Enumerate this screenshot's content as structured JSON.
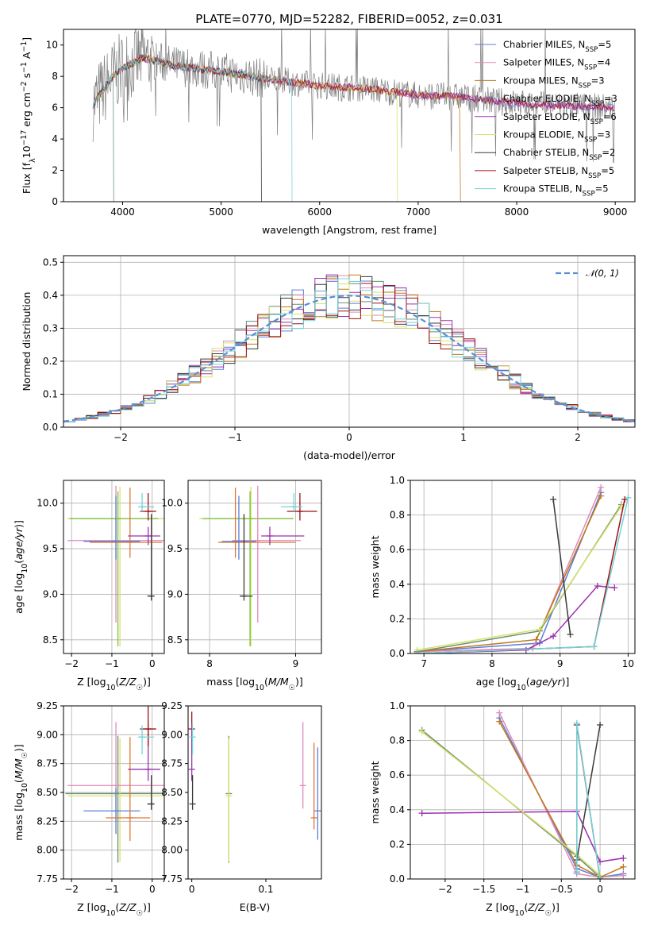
{
  "colors": {
    "Chabrier MILES": "#5b7fd6",
    "Salpeter MILES": "#e08ab8",
    "Kroupa MILES": "#c07818",
    "Chabrier ELODIE": "#6a8f72",
    "Salpeter ELODIE": "#9b30b0",
    "Kroupa ELODIE": "#d8e26a",
    "Chabrier STELIB": "#3a3a3a",
    "Salpeter STELIB": "#9e1010",
    "Kroupa STELIB": "#70d4dc",
    "extra_orange": "#e07830",
    "extra_green": "#7cc040",
    "gaussian": "#5b8ed6",
    "grid": "#b0b0b0"
  },
  "chart_data": [
    {
      "id": "spectrum",
      "type": "line",
      "title": "PLATE=0770, MJD=52282, FIBERID=0052, z=0.031",
      "xlabel": "wavelength [Angstrom, rest frame]",
      "ylabel": "Flux [f_λ 10^-17 erg cm^-2 s^-1 A^-1]",
      "xlim": [
        3400,
        9200
      ],
      "ylim": [
        0,
        11
      ],
      "xticks": [
        4000,
        5000,
        6000,
        7000,
        8000,
        9000
      ],
      "yticks": [
        0,
        2,
        4,
        6,
        8,
        10
      ],
      "grid": false,
      "legend_position": "top-right",
      "legend": [
        {
          "name": "Chabrier MILES",
          "nssp": "5"
        },
        {
          "name": "Salpeter MILES",
          "nssp": "4"
        },
        {
          "name": "Kroupa MILES",
          "nssp": "3"
        },
        {
          "name": "Chabrier ELODIE",
          "nssp": "3"
        },
        {
          "name": "Salpeter ELODIE",
          "nssp": "6"
        },
        {
          "name": "Kroupa ELODIE",
          "nssp": "3"
        },
        {
          "name": "Chabrier STELIB",
          "nssp": "2"
        },
        {
          "name": "Salpeter STELIB",
          "nssp": "5"
        },
        {
          "name": "Kroupa STELIB",
          "nssp": "5"
        }
      ],
      "continuum": {
        "x": [
          3700,
          3900,
          4000,
          4200,
          4500,
          5000,
          5500,
          6000,
          6500,
          7000,
          7400,
          7800,
          8200,
          8600,
          9000
        ],
        "y": [
          6.2,
          8.0,
          8.5,
          9.2,
          8.7,
          8.3,
          7.8,
          7.4,
          7.2,
          6.8,
          6.7,
          6.4,
          6.2,
          6.1,
          6.0
        ]
      },
      "dropouts": [
        {
          "name": "Kroupa MILES",
          "x": 7430
        },
        {
          "name": "Kroupa ELODIE",
          "x": 6790
        },
        {
          "name": "Chabrier ELODIE",
          "x": 3910
        },
        {
          "name": "Kroupa STELIB",
          "x": 5720
        },
        {
          "name": "Chabrier STELIB",
          "x": 5410
        }
      ]
    },
    {
      "id": "residuals",
      "type": "histogram",
      "xlabel": "(data-model)/error",
      "ylabel": "Normed distribution",
      "xlim": [
        -2.5,
        2.5
      ],
      "ylim": [
        0,
        0.52
      ],
      "xticks": [
        -2,
        -1,
        0,
        1,
        2
      ],
      "yticks": [
        0.0,
        0.1,
        0.2,
        0.3,
        0.4,
        0.5
      ],
      "grid": true,
      "legend_position": "top-right",
      "legend": [
        {
          "name": "𝒩(0, 1)"
        }
      ],
      "bin_width": 0.1,
      "series_names": [
        "Chabrier MILES",
        "Salpeter MILES",
        "Kroupa MILES",
        "Chabrier ELODIE",
        "Salpeter ELODIE",
        "Kroupa ELODIE",
        "Chabrier STELIB",
        "Salpeter STELIB",
        "Kroupa STELIB"
      ]
    },
    {
      "id": "age_vs_Z",
      "type": "errorbar",
      "xlabel": "Z [log10(Z/Z☉)]",
      "ylabel": "age [log10(age/yr)]",
      "xlim": [
        -2.2,
        0.3
      ],
      "ylim": [
        8.35,
        10.25
      ],
      "xticks": [
        -2,
        -1,
        0
      ],
      "yticks": [
        8.5,
        9.0,
        9.5,
        10.0
      ],
      "grid": true,
      "points": [
        {
          "series": "Kroupa ELODIE",
          "x": -0.8,
          "y": 9.83,
          "xerr": [
            1.3,
            1.2
          ],
          "yerr": [
            1.4,
            0.35
          ]
        },
        {
          "series": "extra_green",
          "x": -0.85,
          "y": 9.83,
          "xerr": [
            1.2,
            1.0
          ],
          "yerr": [
            1.4,
            0.3
          ]
        },
        {
          "series": "Salpeter MILES",
          "x": -0.9,
          "y": 9.59,
          "xerr": [
            1.2,
            1.2
          ],
          "yerr": [
            0.9,
            0.6
          ]
        },
        {
          "series": "extra_orange",
          "x": -0.55,
          "y": 9.57,
          "xerr": [
            1.0,
            0.8
          ],
          "yerr": [
            0.17,
            0.6
          ]
        },
        {
          "series": "Chabrier MILES",
          "x": -0.9,
          "y": 9.58,
          "xerr": [
            0.8,
            0.6
          ],
          "yerr": [
            0.2,
            0.5
          ]
        },
        {
          "series": "Salpeter ELODIE",
          "x": -0.1,
          "y": 9.64,
          "xerr": [
            0.5,
            0.3
          ],
          "yerr": [
            0.1,
            0.1
          ]
        },
        {
          "series": "Salpeter STELIB",
          "x": -0.1,
          "y": 9.91,
          "xerr": [
            0.2,
            0.2
          ],
          "yerr": [
            0.1,
            0.2
          ]
        },
        {
          "series": "Kroupa STELIB",
          "x": -0.25,
          "y": 9.96,
          "xerr": [
            0.1,
            0.3
          ],
          "yerr": [
            0.05,
            0.15
          ]
        },
        {
          "series": "Chabrier STELIB",
          "x": -0.02,
          "y": 8.98,
          "xerr": [
            0.1,
            0.05
          ],
          "yerr": [
            0.05,
            0.9
          ]
        }
      ]
    },
    {
      "id": "age_vs_mass",
      "type": "errorbar",
      "xlabel": "mass [log10(M/M☉)]",
      "ylabel": "",
      "xlim": [
        7.75,
        9.3
      ],
      "ylim": [
        8.35,
        10.25
      ],
      "xticks": [
        8,
        9
      ],
      "yticks": [
        8.5,
        9.0,
        9.5,
        10.0
      ],
      "grid": true,
      "points": [
        {
          "series": "Kroupa ELODIE",
          "x": 8.48,
          "y": 9.83,
          "xerr": [
            0.6,
            0.5
          ],
          "yerr": [
            1.4,
            0.35
          ]
        },
        {
          "series": "extra_green",
          "x": 8.47,
          "y": 9.83,
          "xerr": [
            0.55,
            0.5
          ],
          "yerr": [
            1.4,
            0.3
          ]
        },
        {
          "series": "Salpeter MILES",
          "x": 8.56,
          "y": 9.59,
          "xerr": [
            0.3,
            0.5
          ],
          "yerr": [
            0.9,
            0.6
          ]
        },
        {
          "series": "extra_orange",
          "x": 8.3,
          "y": 9.57,
          "xerr": [
            0.2,
            0.7
          ],
          "yerr": [
            0.17,
            0.6
          ]
        },
        {
          "series": "Chabrier MILES",
          "x": 8.34,
          "y": 9.58,
          "xerr": [
            0.2,
            0.2
          ],
          "yerr": [
            0.2,
            0.5
          ]
        },
        {
          "series": "Salpeter ELODIE",
          "x": 8.7,
          "y": 9.64,
          "xerr": [
            0.1,
            0.4
          ],
          "yerr": [
            0.1,
            0.1
          ]
        },
        {
          "series": "Salpeter STELIB",
          "x": 9.05,
          "y": 9.91,
          "xerr": [
            0.15,
            0.2
          ],
          "yerr": [
            0.1,
            0.2
          ]
        },
        {
          "series": "Kroupa STELIB",
          "x": 8.98,
          "y": 9.96,
          "xerr": [
            0.15,
            0.1
          ],
          "yerr": [
            0.05,
            0.15
          ]
        },
        {
          "series": "Chabrier STELIB",
          "x": 8.4,
          "y": 8.98,
          "xerr": [
            0.05,
            0.1
          ],
          "yerr": [
            0.05,
            0.9
          ]
        }
      ]
    },
    {
      "id": "weight_vs_age",
      "type": "line",
      "xlabel": "age  [log10(age/yr)]",
      "ylabel": "mass weight",
      "xlim": [
        6.8,
        10.1
      ],
      "ylim": [
        0,
        1.0
      ],
      "xticks": [
        7,
        8,
        9,
        10
      ],
      "yticks": [
        0.0,
        0.2,
        0.4,
        0.6,
        0.8,
        1.0
      ],
      "grid": true,
      "series": [
        {
          "name": "Chabrier MILES",
          "x": [
            6.9,
            8.7,
            9.6
          ],
          "y": [
            0.01,
            0.06,
            0.93
          ]
        },
        {
          "name": "Salpeter MILES",
          "x": [
            6.9,
            8.6,
            9.6
          ],
          "y": [
            0.01,
            0.03,
            0.96
          ]
        },
        {
          "name": "Kroupa MILES",
          "x": [
            6.9,
            8.65,
            9.6
          ],
          "y": [
            0.01,
            0.08,
            0.91
          ]
        },
        {
          "name": "Chabrier ELODIE",
          "x": [
            6.9,
            8.7,
            9.9
          ],
          "y": [
            0.01,
            0.13,
            0.86
          ]
        },
        {
          "name": "Salpeter ELODIE",
          "x": [
            6.9,
            8.5,
            8.9,
            9.55,
            9.8
          ],
          "y": [
            0.0,
            0.02,
            0.1,
            0.39,
            0.38
          ]
        },
        {
          "name": "Kroupa ELODIE",
          "x": [
            6.9,
            8.7,
            9.9
          ],
          "y": [
            0.02,
            0.14,
            0.85
          ]
        },
        {
          "name": "Chabrier STELIB",
          "x": [
            8.9,
            9.15
          ],
          "y": [
            0.89,
            0.11
          ]
        },
        {
          "name": "Salpeter STELIB",
          "x": [
            6.9,
            9.5,
            9.95
          ],
          "y": [
            0.0,
            0.04,
            0.89
          ]
        },
        {
          "name": "Kroupa STELIB",
          "x": [
            6.9,
            9.5,
            10.0
          ],
          "y": [
            0.0,
            0.04,
            0.9
          ]
        }
      ]
    },
    {
      "id": "mass_vs_Z",
      "type": "errorbar",
      "xlabel": "Z [log10(Z/Z☉)]",
      "ylabel": "mass [log10(M/M☉)]",
      "xlim": [
        -2.2,
        0.3
      ],
      "ylim": [
        7.75,
        9.25
      ],
      "xticks": [
        -2,
        -1,
        0
      ],
      "yticks": [
        7.75,
        8.0,
        8.25,
        8.5,
        8.75,
        9.0,
        9.25
      ],
      "grid": true,
      "points": [
        {
          "series": "Chabrier ELODIE",
          "x": -0.85,
          "y": 8.49,
          "xerr": [
            1.3,
            1.2
          ],
          "yerr": [
            0.6,
            0.5
          ]
        },
        {
          "series": "Kroupa ELODIE",
          "x": -0.8,
          "y": 8.47,
          "xerr": [
            1.3,
            1.1
          ],
          "yerr": [
            0.57,
            0.5
          ]
        },
        {
          "series": "Salpeter MILES",
          "x": -0.9,
          "y": 8.56,
          "xerr": [
            1.2,
            1.2
          ],
          "yerr": [
            0.3,
            0.55
          ]
        },
        {
          "series": "Chabrier MILES",
          "x": -0.9,
          "y": 8.34,
          "xerr": [
            0.8,
            0.6
          ],
          "yerr": [
            0.2,
            0.2
          ]
        },
        {
          "series": "extra_orange",
          "x": -0.55,
          "y": 8.28,
          "xerr": [
            0.6,
            0.5
          ],
          "yerr": [
            0.2,
            0.7
          ]
        },
        {
          "series": "Salpeter ELODIE",
          "x": -0.1,
          "y": 8.7,
          "xerr": [
            0.5,
            0.3
          ],
          "yerr": [
            0.1,
            0.4
          ]
        },
        {
          "series": "Salpeter STELIB",
          "x": -0.1,
          "y": 9.05,
          "xerr": [
            0.2,
            0.2
          ],
          "yerr": [
            0.15,
            0.2
          ]
        },
        {
          "series": "Kroupa STELIB",
          "x": -0.25,
          "y": 8.98,
          "xerr": [
            0.1,
            0.3
          ],
          "yerr": [
            0.15,
            0.1
          ]
        },
        {
          "series": "Chabrier STELIB",
          "x": -0.02,
          "y": 8.4,
          "xerr": [
            0.1,
            0.05
          ],
          "yerr": [
            0.05,
            0.25
          ]
        }
      ]
    },
    {
      "id": "mass_vs_ebv",
      "type": "errorbar",
      "xlabel": "E(B-V)",
      "ylabel": "",
      "xlim": [
        -0.005,
        0.175
      ],
      "ylim": [
        7.75,
        9.25
      ],
      "xticks": [
        0.0,
        0.1
      ],
      "yticks": [
        7.75,
        8.0,
        8.25,
        8.5,
        8.75,
        9.0,
        9.25
      ],
      "grid": false,
      "points": [
        {
          "series": "Salpeter STELIB",
          "x": 0.0,
          "y": 9.05,
          "xerr": [
            0,
            0
          ],
          "yerr": [
            0.2,
            0.15
          ]
        },
        {
          "series": "Salpeter ELODIE",
          "x": 0.0,
          "y": 8.7,
          "xerr": [
            0,
            0
          ],
          "yerr": [
            0.1,
            0.4
          ]
        },
        {
          "series": "Chabrier STELIB",
          "x": 0.001,
          "y": 8.4,
          "xerr": [
            0,
            0
          ],
          "yerr": [
            0.05,
            0.25
          ]
        },
        {
          "series": "Kroupa STELIB",
          "x": 0.001,
          "y": 8.98,
          "xerr": [
            0,
            0
          ],
          "yerr": [
            0.15,
            0.1
          ]
        },
        {
          "series": "Chabrier ELODIE",
          "x": 0.05,
          "y": 8.49,
          "xerr": [
            0,
            0
          ],
          "yerr": [
            0.6,
            0.5
          ]
        },
        {
          "series": "Kroupa ELODIE",
          "x": 0.05,
          "y": 8.47,
          "xerr": [
            0,
            0
          ],
          "yerr": [
            0.57,
            0.5
          ]
        },
        {
          "series": "Salpeter MILES",
          "x": 0.15,
          "y": 8.56,
          "xerr": [
            0,
            0
          ],
          "yerr": [
            0.2,
            0.55
          ]
        },
        {
          "series": "extra_orange",
          "x": 0.165,
          "y": 8.28,
          "xerr": [
            0,
            0
          ],
          "yerr": [
            0.1,
            0.65
          ]
        },
        {
          "series": "Chabrier MILES",
          "x": 0.17,
          "y": 8.34,
          "xerr": [
            0,
            0
          ],
          "yerr": [
            0.25,
            0.55
          ]
        }
      ]
    },
    {
      "id": "weight_vs_Z",
      "type": "line",
      "xlabel": "Z [log10(Z/Z☉)]",
      "ylabel": "mass weight",
      "xlim": [
        -2.45,
        0.45
      ],
      "ylim": [
        0,
        1.0
      ],
      "xticks": [
        -2.0,
        -1.5,
        -1.0,
        -0.5,
        0.0
      ],
      "yticks": [
        0.0,
        0.2,
        0.4,
        0.6,
        0.8,
        1.0
      ],
      "grid": true,
      "series": [
        {
          "name": "Chabrier MILES",
          "x": [
            -1.3,
            -0.3,
            0.0,
            0.3
          ],
          "y": [
            0.93,
            0.06,
            0.01,
            0.03
          ]
        },
        {
          "name": "Salpeter MILES",
          "x": [
            -1.3,
            -0.3,
            0.0,
            0.3
          ],
          "y": [
            0.96,
            0.03,
            0.01,
            0.02
          ]
        },
        {
          "name": "Kroupa MILES",
          "x": [
            -1.3,
            -0.3,
            0.0,
            0.3
          ],
          "y": [
            0.91,
            0.08,
            0.01,
            0.07
          ]
        },
        {
          "name": "Chabrier ELODIE",
          "x": [
            -2.3,
            -0.3,
            0.0
          ],
          "y": [
            0.86,
            0.13,
            0.01
          ]
        },
        {
          "name": "Salpeter ELODIE",
          "x": [
            -2.3,
            -0.3,
            0.0,
            0.3
          ],
          "y": [
            0.38,
            0.39,
            0.1,
            0.12
          ]
        },
        {
          "name": "Kroupa ELODIE",
          "x": [
            -2.3,
            -0.3,
            0.0
          ],
          "y": [
            0.85,
            0.14,
            0.02
          ]
        },
        {
          "name": "Chabrier STELIB",
          "x": [
            -0.3,
            0.0
          ],
          "y": [
            0.11,
            0.89
          ]
        },
        {
          "name": "Salpeter STELIB",
          "x": [
            -0.3,
            -0.3,
            0.0
          ],
          "y": [
            0.04,
            0.89,
            0.0
          ]
        },
        {
          "name": "Kroupa STELIB",
          "x": [
            -0.3,
            -0.3,
            0.0
          ],
          "y": [
            0.04,
            0.9,
            0.0
          ]
        }
      ]
    }
  ]
}
